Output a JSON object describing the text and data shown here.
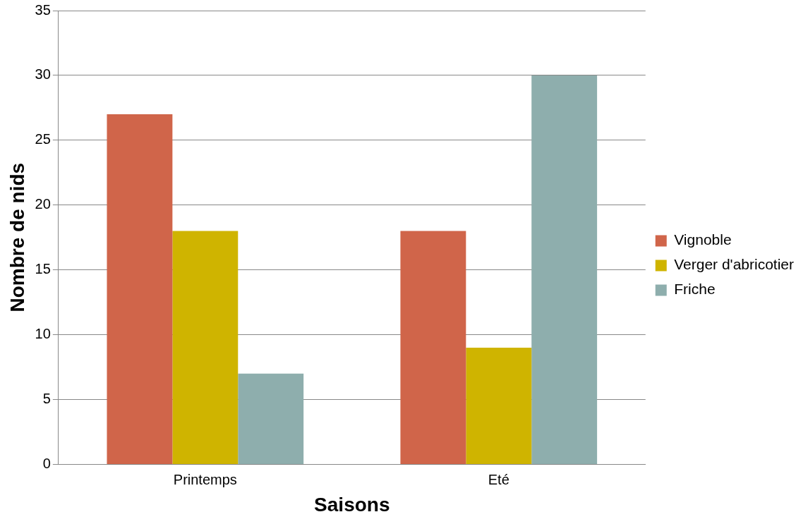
{
  "chart_data": {
    "type": "bar",
    "xlabel": "Saisons",
    "ylabel": "Nombre de nids",
    "categories": [
      "Printemps",
      "Eté"
    ],
    "series": [
      {
        "name": "Vignoble",
        "color": "#d0654a",
        "values": [
          27,
          18
        ]
      },
      {
        "name": "Verger d'abricotier",
        "color": "#cfb400",
        "values": [
          18,
          9
        ]
      },
      {
        "name": "Friche",
        "color": "#8eaead",
        "values": [
          7,
          30
        ]
      }
    ],
    "ylim": [
      0,
      35
    ],
    "yticks": [
      0,
      5,
      10,
      15,
      20,
      25,
      30,
      35
    ],
    "grid": "y",
    "legend": "right"
  }
}
